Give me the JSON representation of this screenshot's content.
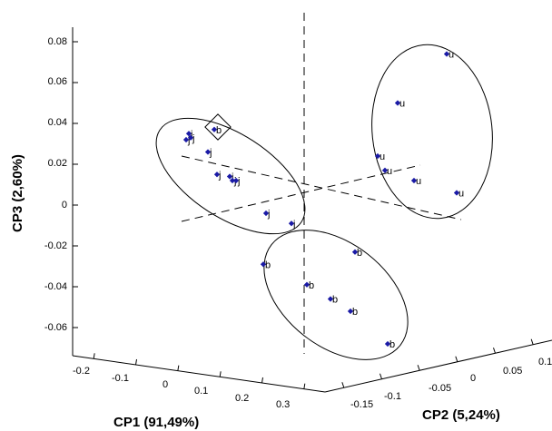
{
  "chart_data": {
    "type": "scatter",
    "view": "3d",
    "grid": false,
    "axes": {
      "x": {
        "label": "CP1 (91,49%)",
        "ticks": [
          "-0.2",
          "-0.1",
          "0",
          "0.1",
          "0.2",
          "0.3"
        ]
      },
      "y": {
        "label": "CP2 (5,24%)",
        "ticks": [
          "-0.15",
          "-0.1",
          "-0.05",
          "0",
          "0.05",
          "0.1"
        ]
      },
      "z": {
        "label": "CP3 (2,60%)",
        "ticks": [
          "0.08",
          "0.06",
          "0.04",
          "0.02",
          "0",
          "-0.02",
          "-0.04",
          "-0.06"
        ],
        "range": [
          -0.07,
          0.085
        ]
      }
    },
    "point_color": "#1a1aa6",
    "groups": [
      {
        "label": "j",
        "outlined": true,
        "z_values": [
          0.035,
          0.032,
          0.033,
          0.026,
          0.015,
          0.014,
          0.012,
          0.012,
          -0.004,
          -0.009
        ]
      },
      {
        "label": "u",
        "outlined": true,
        "z_values": [
          0.074,
          0.05,
          0.024,
          0.017,
          0.012,
          0.006
        ]
      },
      {
        "label": "b",
        "outlined": true,
        "z_values": [
          -0.023,
          -0.029,
          -0.039,
          -0.046,
          -0.052,
          -0.068
        ]
      }
    ],
    "highlighted_point": {
      "label": "b",
      "z": 0.037,
      "marker": "diamond"
    }
  }
}
